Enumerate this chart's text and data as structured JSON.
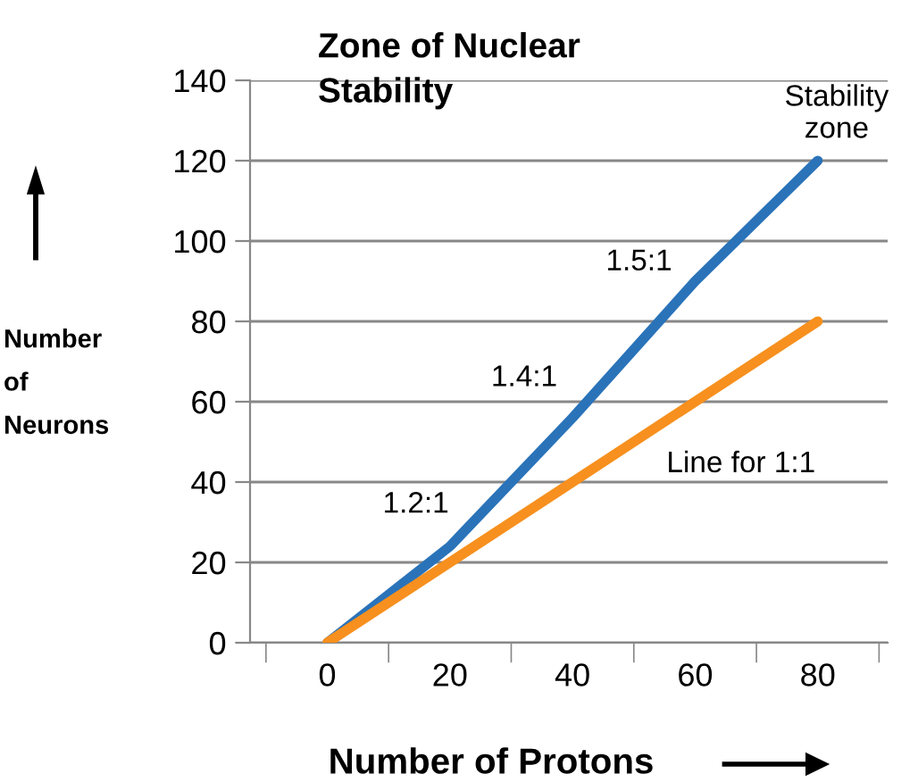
{
  "chart_data": {
    "type": "line",
    "title": "Zone of Nuclear Stability",
    "xlabel": "Number of Protons",
    "ylabel": "Number of Neurons",
    "categories": [
      "0",
      "20",
      "40",
      "60",
      "80"
    ],
    "series": [
      {
        "color": "#2a73b9",
        "values": [
          0,
          24,
          56,
          90,
          120
        ]
      },
      {
        "color": "#f7901e",
        "values": [
          0,
          20,
          40,
          60,
          80
        ]
      }
    ],
    "ylim": [
      0,
      140
    ],
    "yticks": [
      0,
      20,
      40,
      60,
      80,
      100,
      120,
      140
    ],
    "grid": "y",
    "legend": false,
    "marker": "none",
    "line_style": "solid",
    "annotations": [
      "1.2:1",
      "1.4:1",
      "1.5:1",
      "Line for 1:1",
      "Stability zone"
    ]
  }
}
